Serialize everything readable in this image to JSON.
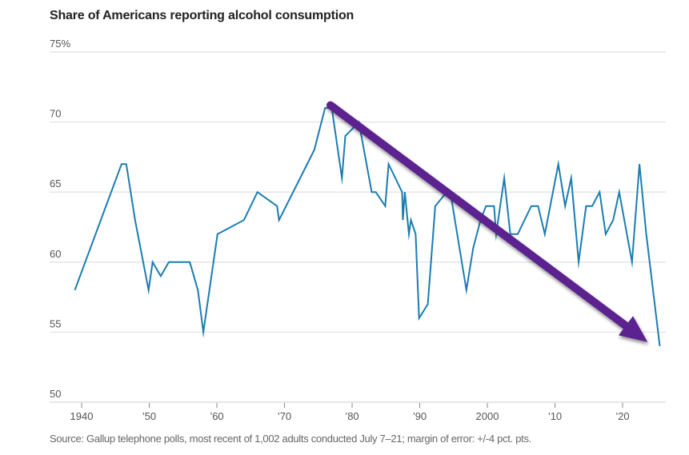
{
  "chart_data": {
    "type": "line",
    "title": "Share of Americans reporting alcohol consumption",
    "source": "Source: Gallup telephone polls, most recent of 1,002 adults conducted July 7–21; margin of error: +/-4 pct. pts.",
    "xlabel": "",
    "ylabel": "",
    "ylim": [
      50,
      75
    ],
    "xlim": [
      1934,
      2026.5
    ],
    "grid": true,
    "y_ticks": [
      {
        "value": 75,
        "label": "75%"
      },
      {
        "value": 70,
        "label": "70"
      },
      {
        "value": 65,
        "label": "65"
      },
      {
        "value": 60,
        "label": "60"
      },
      {
        "value": 55,
        "label": "55"
      },
      {
        "value": 50,
        "label": "50"
      }
    ],
    "x_ticks": [
      {
        "value": 1940,
        "label": "1940"
      },
      {
        "value": 1950,
        "label": "’50"
      },
      {
        "value": 1960,
        "label": "’60"
      },
      {
        "value": 1970,
        "label": "’70"
      },
      {
        "value": 1980,
        "label": "’80"
      },
      {
        "value": 1990,
        "label": "’90"
      },
      {
        "value": 2000,
        "label": "2000"
      },
      {
        "value": 2010,
        "label": "’10"
      },
      {
        "value": 2020,
        "label": "’20"
      }
    ],
    "series": [
      {
        "name": "Share reporting alcohol consumption",
        "color": "#1a7db0",
        "x": [
          1939,
          1945.9,
          1946.6,
          1947.9,
          1949.9,
          1950.5,
          1951.7,
          1952.9,
          1956,
          1957.2,
          1958,
          1960.1,
          1964,
          1966,
          1968.9,
          1969.2,
          1974.4,
          1976,
          1977,
          1978.5,
          1979,
          1980,
          1981,
          1982.9,
          1983.5,
          1984.9,
          1985.4,
          1987.4,
          1987.5,
          1987.8,
          1988.4,
          1988.7,
          1989.4,
          1989.9,
          1991.2,
          1992.3,
          1994,
          1994.7,
          1996.9,
          1997.9,
          1999,
          1999.8,
          2001,
          2001.3,
          2002.5,
          2003.4,
          2004.5,
          2006.5,
          2007.5,
          2008.5,
          2010.5,
          2011.5,
          2012.4,
          2013.5,
          2014.6,
          2015.5,
          2016.6,
          2017.5,
          2018.6,
          2019.5,
          2021.4,
          2022.5,
          2023.5,
          2025.5
        ],
        "values": [
          58,
          67,
          67,
          63,
          58,
          60,
          59,
          60,
          60,
          58,
          55,
          62,
          63,
          65,
          64,
          63,
          68,
          71,
          71,
          66,
          69,
          69.5,
          70,
          65,
          65,
          64,
          67,
          65,
          63,
          65,
          62,
          63,
          62,
          56,
          57,
          64,
          65,
          64.5,
          58,
          61,
          63,
          64,
          64,
          62,
          66,
          62,
          62,
          64,
          64,
          62,
          67,
          64,
          66,
          60,
          64,
          64,
          65,
          62,
          63,
          65,
          60,
          67,
          62,
          54
        ]
      }
    ],
    "annotations": [
      {
        "type": "arrow",
        "description": "downward trend arrow",
        "color": "#5b2390",
        "from": {
          "x": 1976.8,
          "y": 71.2
        },
        "to": {
          "x": 2023.7,
          "y": 54.3
        }
      }
    ]
  }
}
